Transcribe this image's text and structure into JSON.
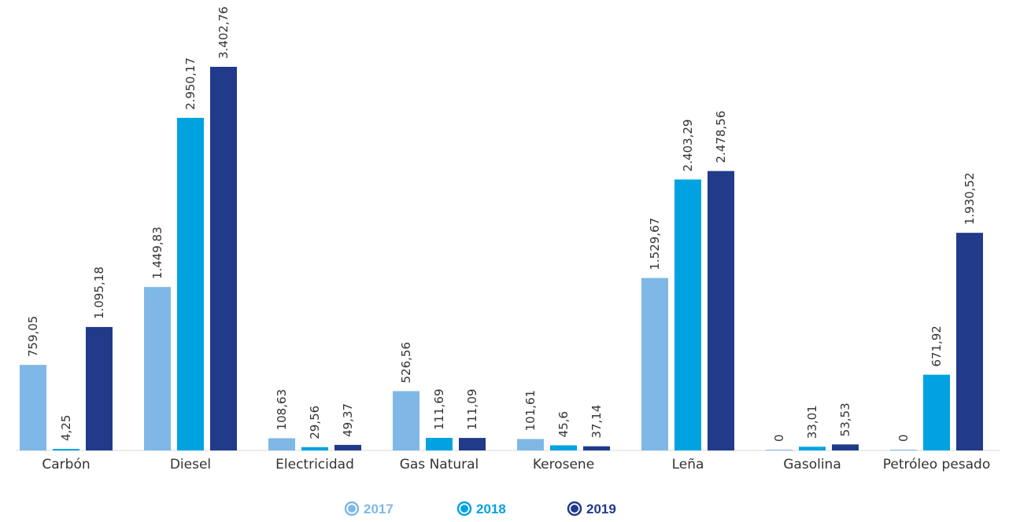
{
  "chart_data": {
    "type": "bar",
    "title": "",
    "xlabel": "",
    "ylabel": "",
    "ylim": [
      0,
      3500
    ],
    "grid": false,
    "legend_position": "bottom-center",
    "categories": [
      "Carbón",
      "Diesel",
      "Electricidad",
      "Gas Natural",
      "Kerosene",
      "Leña",
      "Gasolina",
      "Petróleo pesado"
    ],
    "series": [
      {
        "name": "2017",
        "color": "#7fb8e6",
        "values": [
          759.05,
          1449.83,
          108.63,
          526.56,
          101.61,
          1529.67,
          0,
          0
        ],
        "labels": [
          "759,05",
          "1.449,83",
          "108,63",
          "526,56",
          "101,61",
          "1.529,67",
          "0",
          "0"
        ]
      },
      {
        "name": "2018",
        "color": "#00a3e0",
        "values": [
          4.25,
          2950.17,
          29.56,
          111.69,
          45.6,
          2403.29,
          33.01,
          671.92
        ],
        "labels": [
          "4,25",
          "2.950,17",
          "29,56",
          "111,69",
          "45,6",
          "2.403,29",
          "33,01",
          "671,92"
        ]
      },
      {
        "name": "2019",
        "color": "#213a8a",
        "values": [
          1095.18,
          3402.76,
          49.37,
          111.09,
          37.14,
          2478.56,
          53.53,
          1930.52
        ],
        "labels": [
          "1.095,18",
          "3.402,76",
          "49,37",
          "111,09",
          "37,14",
          "2.478,56",
          "53,53",
          "1.930,52"
        ]
      }
    ]
  }
}
